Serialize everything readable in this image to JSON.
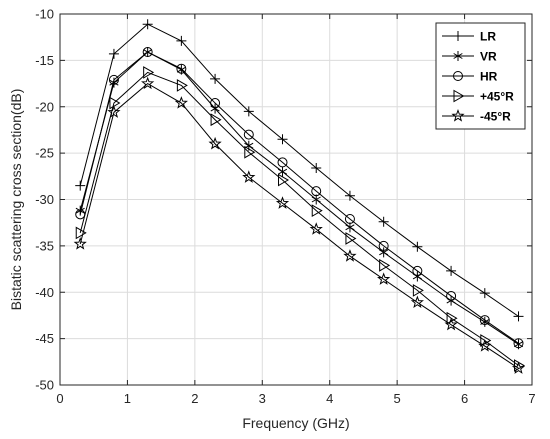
{
  "chart_data": {
    "type": "line",
    "xlabel": "Frequency (GHz)",
    "ylabel": "Bistatic scattering cross section(dB)",
    "xlim": [
      0,
      7
    ],
    "ylim": [
      -50,
      -10
    ],
    "xticks": [
      0,
      1,
      2,
      3,
      4,
      5,
      6,
      7
    ],
    "yticks": [
      -10,
      -15,
      -20,
      -25,
      -30,
      -35,
      -40,
      -45,
      -50
    ],
    "grid": true,
    "legend_position": "top-right",
    "x": [
      0.3,
      0.8,
      1.3,
      1.8,
      2.3,
      2.8,
      3.3,
      3.8,
      4.3,
      4.8,
      5.3,
      5.8,
      6.3,
      6.8
    ],
    "series": [
      {
        "name": "LR",
        "marker": "plus",
        "values": [
          -28.5,
          -14.3,
          -11.1,
          -12.9,
          -17.0,
          -20.5,
          -23.5,
          -26.6,
          -29.6,
          -32.4,
          -35.1,
          -37.7,
          -40.1,
          -42.6
        ]
      },
      {
        "name": "VR",
        "marker": "asterisk",
        "values": [
          -31.2,
          -17.4,
          -14.1,
          -16.0,
          -20.2,
          -24.2,
          -27.0,
          -30.0,
          -33.0,
          -35.7,
          -38.3,
          -40.9,
          -43.2,
          -45.6
        ]
      },
      {
        "name": "HR",
        "marker": "circle",
        "values": [
          -31.6,
          -17.1,
          -14.1,
          -15.9,
          -19.6,
          -23.0,
          -26.0,
          -29.1,
          -32.1,
          -35.0,
          -37.7,
          -40.4,
          -43.0,
          -45.5
        ]
      },
      {
        "name": "+45°R",
        "marker": "triangle-right",
        "values": [
          -33.6,
          -19.6,
          -16.3,
          -17.7,
          -21.4,
          -24.9,
          -27.9,
          -31.2,
          -34.2,
          -37.1,
          -39.8,
          -42.8,
          -45.2,
          -47.9
        ]
      },
      {
        "name": "-45°R",
        "marker": "star",
        "values": [
          -34.8,
          -20.6,
          -17.5,
          -19.6,
          -24.0,
          -27.6,
          -30.4,
          -33.2,
          -36.1,
          -38.6,
          -41.1,
          -43.5,
          -45.8,
          -48.2
        ]
      }
    ]
  }
}
